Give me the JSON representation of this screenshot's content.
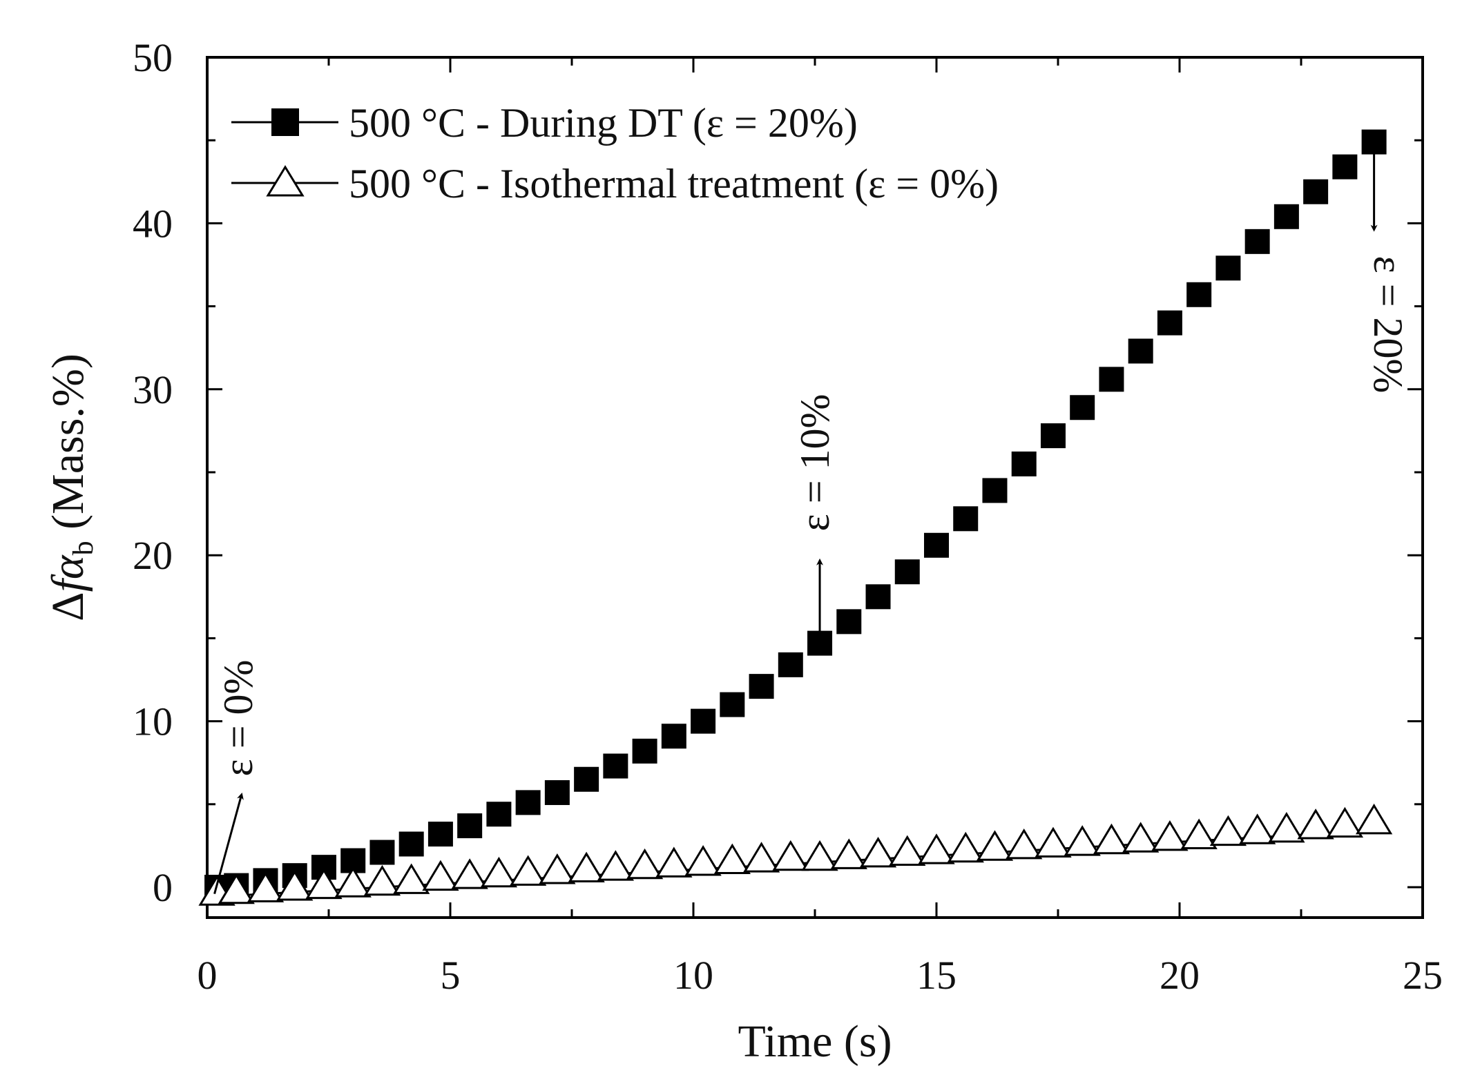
{
  "chart_data": {
    "type": "scatter",
    "title": "",
    "xlabel": "Time (s)",
    "ylabel": {
      "prefix": "Δ",
      "f": "f",
      "alpha": "α",
      "sub": "b",
      "suffix": " (Mass.%)"
    },
    "xlim": [
      0,
      25
    ],
    "ylim": [
      -2,
      50
    ],
    "xticks": [
      0,
      5,
      10,
      15,
      20,
      25
    ],
    "xtick_labels": [
      "0",
      "5",
      "10",
      "15",
      "20",
      "25"
    ],
    "yticks": [
      0,
      10,
      20,
      30,
      40,
      50
    ],
    "ytick_labels": [
      "0",
      "10",
      "20",
      "30",
      "40",
      "50"
    ],
    "grid": false,
    "legend_position": "top-left",
    "series": [
      {
        "name": "500 °C - During DT (ε = 20%)",
        "marker": "filled-square",
        "color": "#000000",
        "x": [
          0.2,
          0.6,
          1.2,
          1.8,
          2.4,
          3.0,
          3.6,
          4.2,
          4.8,
          5.4,
          6.0,
          6.6,
          7.2,
          7.8,
          8.4,
          9.0,
          9.6,
          10.2,
          10.8,
          11.4,
          12.0,
          12.6,
          13.2,
          13.8,
          14.4,
          15.0,
          15.6,
          16.2,
          16.8,
          17.4,
          18.0,
          18.6,
          19.2,
          19.8,
          20.4,
          21.0,
          21.6,
          22.2,
          22.8,
          23.4,
          24.0
        ],
        "values": [
          0.0,
          0.1,
          0.4,
          0.7,
          1.2,
          1.6,
          2.1,
          2.6,
          3.2,
          3.7,
          4.4,
          5.1,
          5.7,
          6.5,
          7.3,
          8.2,
          9.1,
          10.0,
          11.0,
          12.1,
          13.4,
          14.7,
          16.0,
          17.5,
          19.0,
          20.6,
          22.2,
          23.9,
          25.5,
          27.2,
          28.9,
          30.6,
          32.3,
          34.0,
          35.7,
          37.3,
          38.9,
          40.4,
          41.9,
          43.4,
          44.9
        ],
        "fit_line": false
      },
      {
        "name": "500 °C - Isothermal treatment (ε = 0%)",
        "marker": "open-triangle",
        "color": "#000000",
        "x": [
          0.2,
          0.6,
          1.2,
          1.8,
          2.4,
          3.0,
          3.6,
          4.2,
          4.8,
          5.4,
          6.0,
          6.6,
          7.2,
          7.8,
          8.4,
          9.0,
          9.6,
          10.2,
          10.8,
          11.4,
          12.0,
          12.6,
          13.2,
          13.8,
          14.4,
          15.0,
          15.6,
          16.2,
          16.8,
          17.4,
          18.0,
          18.6,
          19.2,
          19.8,
          20.4,
          21.0,
          21.6,
          22.2,
          22.8,
          23.4,
          24.0
        ],
        "values": [
          -0.3,
          -0.2,
          -0.1,
          0.0,
          0.1,
          0.2,
          0.3,
          0.4,
          0.6,
          0.7,
          0.8,
          0.9,
          1.0,
          1.1,
          1.2,
          1.3,
          1.4,
          1.5,
          1.6,
          1.7,
          1.8,
          1.8,
          1.9,
          2.0,
          2.1,
          2.2,
          2.3,
          2.4,
          2.5,
          2.6,
          2.7,
          2.8,
          2.9,
          3.0,
          3.1,
          3.3,
          3.4,
          3.5,
          3.7,
          3.8,
          4.0
        ],
        "fit_line": {
          "x": [
            0,
            24.0
          ],
          "y": [
            -0.6,
            3.4
          ]
        }
      }
    ],
    "annotations": [
      {
        "text": "ε = 0%",
        "arrow_from": [
          0.15,
          -0.4
        ],
        "arrow_to": [
          0.7,
          5.5
        ],
        "rotation": -90
      },
      {
        "text": "ε = 10%",
        "arrow_from": [
          12.6,
          14.7
        ],
        "arrow_to": [
          12.6,
          19.6
        ],
        "rotation": -90
      },
      {
        "text": "ε = 20%",
        "arrow_from": [
          24.0,
          44.5
        ],
        "arrow_to": [
          24.0,
          39.7
        ],
        "rotation": 90
      }
    ]
  }
}
